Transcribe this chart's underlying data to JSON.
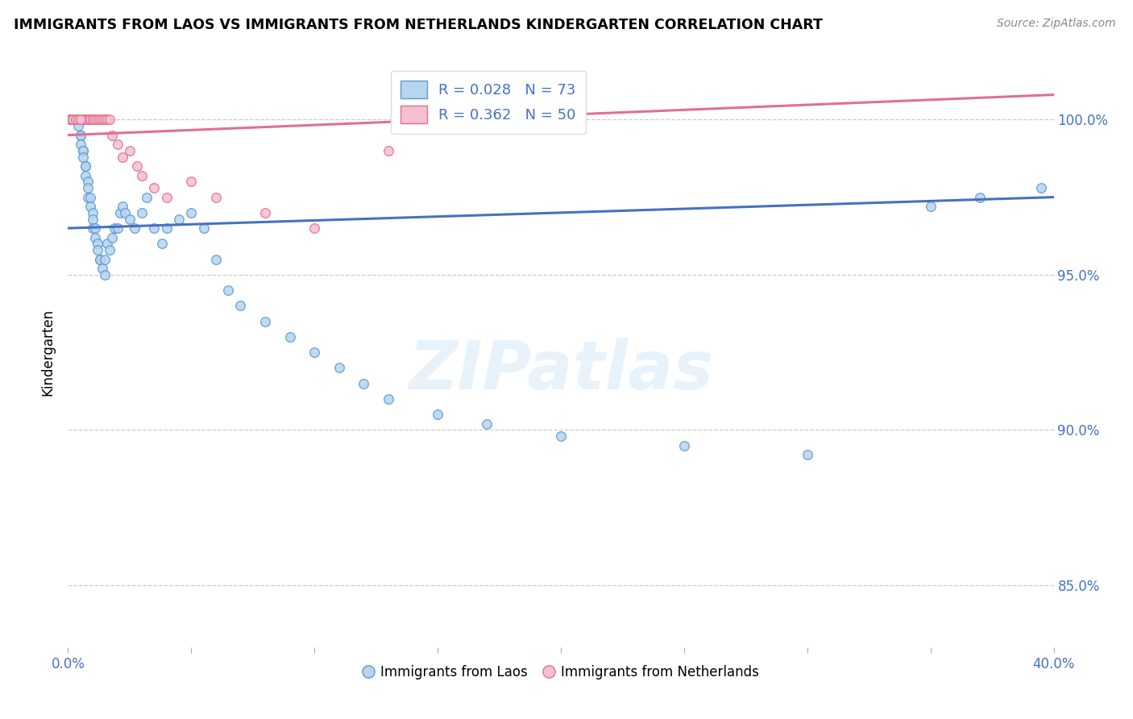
{
  "title": "IMMIGRANTS FROM LAOS VS IMMIGRANTS FROM NETHERLANDS KINDERGARTEN CORRELATION CHART",
  "source": "Source: ZipAtlas.com",
  "ylabel": "Kindergarten",
  "xlim": [
    0.0,
    0.4
  ],
  "ylim": [
    83.0,
    102.0
  ],
  "ytick_vals": [
    85.0,
    90.0,
    95.0,
    100.0
  ],
  "legend1_label": "R = 0.028   N = 73",
  "legend2_label": "R = 0.362   N = 50",
  "series1_label": "Immigrants from Laos",
  "series2_label": "Immigrants from Netherlands",
  "series1_color": "#b8d4ee",
  "series2_color": "#f5c0d0",
  "series1_edge": "#5b9bd5",
  "series2_edge": "#e07090",
  "trend1_color": "#4472c4",
  "trend2_color": "#e07090",
  "blue_color": "#4472c4",
  "marker_size": 70,
  "laos_x": [
    0.001,
    0.002,
    0.002,
    0.003,
    0.003,
    0.003,
    0.004,
    0.004,
    0.004,
    0.005,
    0.005,
    0.005,
    0.006,
    0.006,
    0.006,
    0.007,
    0.007,
    0.007,
    0.008,
    0.008,
    0.008,
    0.009,
    0.009,
    0.01,
    0.01,
    0.01,
    0.011,
    0.011,
    0.012,
    0.012,
    0.013,
    0.013,
    0.014,
    0.015,
    0.015,
    0.016,
    0.017,
    0.018,
    0.019,
    0.02,
    0.021,
    0.022,
    0.023,
    0.025,
    0.027,
    0.03,
    0.032,
    0.035,
    0.038,
    0.04,
    0.045,
    0.05,
    0.055,
    0.06,
    0.065,
    0.07,
    0.08,
    0.09,
    0.1,
    0.11,
    0.12,
    0.13,
    0.15,
    0.17,
    0.2,
    0.25,
    0.3,
    0.35,
    0.37,
    0.395,
    0.002,
    0.003,
    0.004
  ],
  "laos_y": [
    100.0,
    100.0,
    100.0,
    100.0,
    100.0,
    100.0,
    100.0,
    100.0,
    99.8,
    99.5,
    99.5,
    99.2,
    99.0,
    99.0,
    98.8,
    98.5,
    98.5,
    98.2,
    98.0,
    97.8,
    97.5,
    97.5,
    97.2,
    97.0,
    96.8,
    96.5,
    96.5,
    96.2,
    96.0,
    95.8,
    95.5,
    95.5,
    95.2,
    95.5,
    95.0,
    96.0,
    95.8,
    96.2,
    96.5,
    96.5,
    97.0,
    97.2,
    97.0,
    96.8,
    96.5,
    97.0,
    97.5,
    96.5,
    96.0,
    96.5,
    96.8,
    97.0,
    96.5,
    95.5,
    94.5,
    94.0,
    93.5,
    93.0,
    92.5,
    92.0,
    91.5,
    91.0,
    90.5,
    90.2,
    89.8,
    89.5,
    89.2,
    97.2,
    97.5,
    97.8,
    100.0,
    100.0,
    100.0
  ],
  "netherlands_x": [
    0.001,
    0.001,
    0.002,
    0.002,
    0.002,
    0.003,
    0.003,
    0.003,
    0.003,
    0.004,
    0.004,
    0.004,
    0.005,
    0.005,
    0.005,
    0.006,
    0.006,
    0.006,
    0.007,
    0.007,
    0.008,
    0.008,
    0.009,
    0.009,
    0.01,
    0.01,
    0.011,
    0.012,
    0.013,
    0.014,
    0.015,
    0.016,
    0.017,
    0.018,
    0.02,
    0.022,
    0.025,
    0.028,
    0.03,
    0.035,
    0.04,
    0.05,
    0.06,
    0.08,
    0.1,
    0.13,
    0.002,
    0.003,
    0.004,
    0.005
  ],
  "netherlands_y": [
    100.0,
    100.0,
    100.0,
    100.0,
    100.0,
    100.0,
    100.0,
    100.0,
    100.0,
    100.0,
    100.0,
    100.0,
    100.0,
    100.0,
    100.0,
    100.0,
    100.0,
    100.0,
    100.0,
    100.0,
    100.0,
    100.0,
    100.0,
    100.0,
    100.0,
    100.0,
    100.0,
    100.0,
    100.0,
    100.0,
    100.0,
    100.0,
    100.0,
    99.5,
    99.2,
    98.8,
    99.0,
    98.5,
    98.2,
    97.8,
    97.5,
    98.0,
    97.5,
    97.0,
    96.5,
    99.0,
    100.0,
    100.0,
    100.0,
    100.0
  ],
  "trend1_x": [
    0.0,
    0.4
  ],
  "trend1_y": [
    96.5,
    97.5
  ],
  "trend2_x": [
    0.0,
    0.4
  ],
  "trend2_y": [
    99.5,
    100.8
  ]
}
